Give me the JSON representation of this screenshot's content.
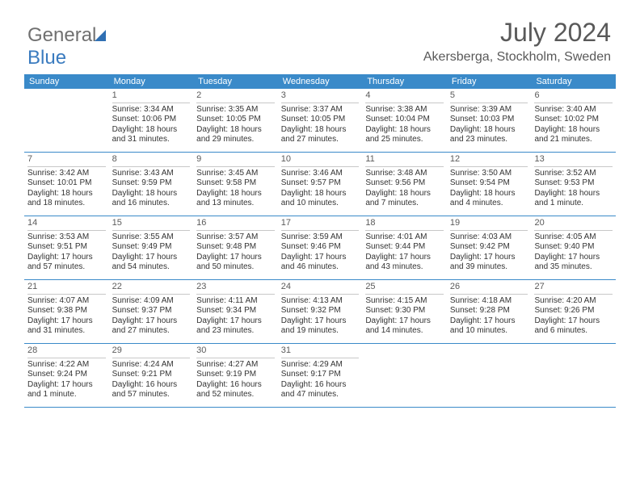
{
  "brand": {
    "part1": "General",
    "part2": "Blue"
  },
  "header": {
    "title": "July 2024",
    "location": "Akersberga, Stockholm, Sweden"
  },
  "day_names": [
    "Sunday",
    "Monday",
    "Tuesday",
    "Wednesday",
    "Thursday",
    "Friday",
    "Saturday"
  ],
  "colors": {
    "header_bar": "#3a8ac9",
    "week_divider": "#3a8ac9",
    "cell_divider": "#c8c8c8",
    "text": "#333333",
    "title_text": "#595959",
    "logo_gray": "#707070",
    "logo_blue": "#3a7bbf"
  },
  "weeks": [
    [
      {
        "n": "",
        "sr": "",
        "ss": "",
        "dl1": "",
        "dl2": "",
        "empty": true
      },
      {
        "n": "1",
        "sr": "Sunrise: 3:34 AM",
        "ss": "Sunset: 10:06 PM",
        "dl1": "Daylight: 18 hours",
        "dl2": "and 31 minutes."
      },
      {
        "n": "2",
        "sr": "Sunrise: 3:35 AM",
        "ss": "Sunset: 10:05 PM",
        "dl1": "Daylight: 18 hours",
        "dl2": "and 29 minutes."
      },
      {
        "n": "3",
        "sr": "Sunrise: 3:37 AM",
        "ss": "Sunset: 10:05 PM",
        "dl1": "Daylight: 18 hours",
        "dl2": "and 27 minutes."
      },
      {
        "n": "4",
        "sr": "Sunrise: 3:38 AM",
        "ss": "Sunset: 10:04 PM",
        "dl1": "Daylight: 18 hours",
        "dl2": "and 25 minutes."
      },
      {
        "n": "5",
        "sr": "Sunrise: 3:39 AM",
        "ss": "Sunset: 10:03 PM",
        "dl1": "Daylight: 18 hours",
        "dl2": "and 23 minutes."
      },
      {
        "n": "6",
        "sr": "Sunrise: 3:40 AM",
        "ss": "Sunset: 10:02 PM",
        "dl1": "Daylight: 18 hours",
        "dl2": "and 21 minutes."
      }
    ],
    [
      {
        "n": "7",
        "sr": "Sunrise: 3:42 AM",
        "ss": "Sunset: 10:01 PM",
        "dl1": "Daylight: 18 hours",
        "dl2": "and 18 minutes."
      },
      {
        "n": "8",
        "sr": "Sunrise: 3:43 AM",
        "ss": "Sunset: 9:59 PM",
        "dl1": "Daylight: 18 hours",
        "dl2": "and 16 minutes."
      },
      {
        "n": "9",
        "sr": "Sunrise: 3:45 AM",
        "ss": "Sunset: 9:58 PM",
        "dl1": "Daylight: 18 hours",
        "dl2": "and 13 minutes."
      },
      {
        "n": "10",
        "sr": "Sunrise: 3:46 AM",
        "ss": "Sunset: 9:57 PM",
        "dl1": "Daylight: 18 hours",
        "dl2": "and 10 minutes."
      },
      {
        "n": "11",
        "sr": "Sunrise: 3:48 AM",
        "ss": "Sunset: 9:56 PM",
        "dl1": "Daylight: 18 hours",
        "dl2": "and 7 minutes."
      },
      {
        "n": "12",
        "sr": "Sunrise: 3:50 AM",
        "ss": "Sunset: 9:54 PM",
        "dl1": "Daylight: 18 hours",
        "dl2": "and 4 minutes."
      },
      {
        "n": "13",
        "sr": "Sunrise: 3:52 AM",
        "ss": "Sunset: 9:53 PM",
        "dl1": "Daylight: 18 hours",
        "dl2": "and 1 minute."
      }
    ],
    [
      {
        "n": "14",
        "sr": "Sunrise: 3:53 AM",
        "ss": "Sunset: 9:51 PM",
        "dl1": "Daylight: 17 hours",
        "dl2": "and 57 minutes."
      },
      {
        "n": "15",
        "sr": "Sunrise: 3:55 AM",
        "ss": "Sunset: 9:49 PM",
        "dl1": "Daylight: 17 hours",
        "dl2": "and 54 minutes."
      },
      {
        "n": "16",
        "sr": "Sunrise: 3:57 AM",
        "ss": "Sunset: 9:48 PM",
        "dl1": "Daylight: 17 hours",
        "dl2": "and 50 minutes."
      },
      {
        "n": "17",
        "sr": "Sunrise: 3:59 AM",
        "ss": "Sunset: 9:46 PM",
        "dl1": "Daylight: 17 hours",
        "dl2": "and 46 minutes."
      },
      {
        "n": "18",
        "sr": "Sunrise: 4:01 AM",
        "ss": "Sunset: 9:44 PM",
        "dl1": "Daylight: 17 hours",
        "dl2": "and 43 minutes."
      },
      {
        "n": "19",
        "sr": "Sunrise: 4:03 AM",
        "ss": "Sunset: 9:42 PM",
        "dl1": "Daylight: 17 hours",
        "dl2": "and 39 minutes."
      },
      {
        "n": "20",
        "sr": "Sunrise: 4:05 AM",
        "ss": "Sunset: 9:40 PM",
        "dl1": "Daylight: 17 hours",
        "dl2": "and 35 minutes."
      }
    ],
    [
      {
        "n": "21",
        "sr": "Sunrise: 4:07 AM",
        "ss": "Sunset: 9:38 PM",
        "dl1": "Daylight: 17 hours",
        "dl2": "and 31 minutes."
      },
      {
        "n": "22",
        "sr": "Sunrise: 4:09 AM",
        "ss": "Sunset: 9:37 PM",
        "dl1": "Daylight: 17 hours",
        "dl2": "and 27 minutes."
      },
      {
        "n": "23",
        "sr": "Sunrise: 4:11 AM",
        "ss": "Sunset: 9:34 PM",
        "dl1": "Daylight: 17 hours",
        "dl2": "and 23 minutes."
      },
      {
        "n": "24",
        "sr": "Sunrise: 4:13 AM",
        "ss": "Sunset: 9:32 PM",
        "dl1": "Daylight: 17 hours",
        "dl2": "and 19 minutes."
      },
      {
        "n": "25",
        "sr": "Sunrise: 4:15 AM",
        "ss": "Sunset: 9:30 PM",
        "dl1": "Daylight: 17 hours",
        "dl2": "and 14 minutes."
      },
      {
        "n": "26",
        "sr": "Sunrise: 4:18 AM",
        "ss": "Sunset: 9:28 PM",
        "dl1": "Daylight: 17 hours",
        "dl2": "and 10 minutes."
      },
      {
        "n": "27",
        "sr": "Sunrise: 4:20 AM",
        "ss": "Sunset: 9:26 PM",
        "dl1": "Daylight: 17 hours",
        "dl2": "and 6 minutes."
      }
    ],
    [
      {
        "n": "28",
        "sr": "Sunrise: 4:22 AM",
        "ss": "Sunset: 9:24 PM",
        "dl1": "Daylight: 17 hours",
        "dl2": "and 1 minute."
      },
      {
        "n": "29",
        "sr": "Sunrise: 4:24 AM",
        "ss": "Sunset: 9:21 PM",
        "dl1": "Daylight: 16 hours",
        "dl2": "and 57 minutes."
      },
      {
        "n": "30",
        "sr": "Sunrise: 4:27 AM",
        "ss": "Sunset: 9:19 PM",
        "dl1": "Daylight: 16 hours",
        "dl2": "and 52 minutes."
      },
      {
        "n": "31",
        "sr": "Sunrise: 4:29 AM",
        "ss": "Sunset: 9:17 PM",
        "dl1": "Daylight: 16 hours",
        "dl2": "and 47 minutes."
      },
      {
        "n": "",
        "sr": "",
        "ss": "",
        "dl1": "",
        "dl2": "",
        "empty": true
      },
      {
        "n": "",
        "sr": "",
        "ss": "",
        "dl1": "",
        "dl2": "",
        "empty": true
      },
      {
        "n": "",
        "sr": "",
        "ss": "",
        "dl1": "",
        "dl2": "",
        "empty": true
      }
    ]
  ]
}
